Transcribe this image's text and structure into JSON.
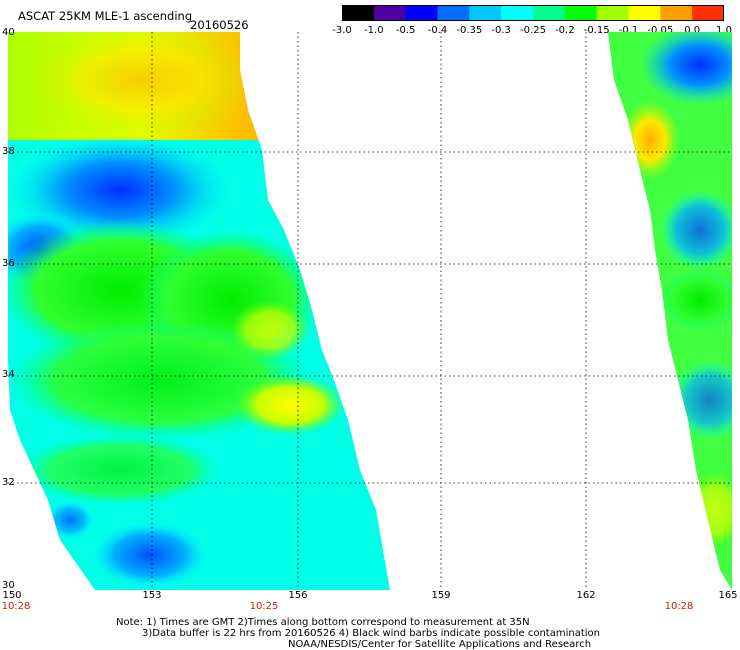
{
  "header": {
    "title": "ASCAT 25KM MLE-1 ascending",
    "date": "20160526"
  },
  "colorbar": {
    "labels": [
      "-3.0",
      "-1.0",
      "-0.5",
      "-0.4",
      "-0.35",
      "-0.3",
      "-0.25",
      "-0.2",
      "-0.15",
      "-0.1",
      "-0.05",
      "0.0",
      "1.0"
    ],
    "colors": [
      "#000000",
      "#5000a0",
      "#0000ff",
      "#0070ff",
      "#00c8ff",
      "#00ffff",
      "#00ff90",
      "#00ff00",
      "#a0ff00",
      "#ffff00",
      "#ffa000",
      "#ff3000"
    ]
  },
  "map": {
    "lat_labels": [
      "40",
      "38",
      "36",
      "34",
      "32",
      "30"
    ],
    "lon_labels": [
      "150",
      "153",
      "156",
      "159",
      "162",
      "165"
    ],
    "times": [
      "10:28",
      "10:25",
      "10:28"
    ],
    "lat_range": [
      30,
      40
    ],
    "lon_range": [
      150,
      165
    ]
  },
  "footer": {
    "note1": "Note: 1) Times are GMT 2)Times along bottom correspond to measurement at 35N",
    "note2": "3)Data buffer is 22 hrs from 20160526 4) Black wind barbs indicate possible contamination",
    "note3": "NOAA/NESDIS/Center for Satellite Applications and Research"
  }
}
